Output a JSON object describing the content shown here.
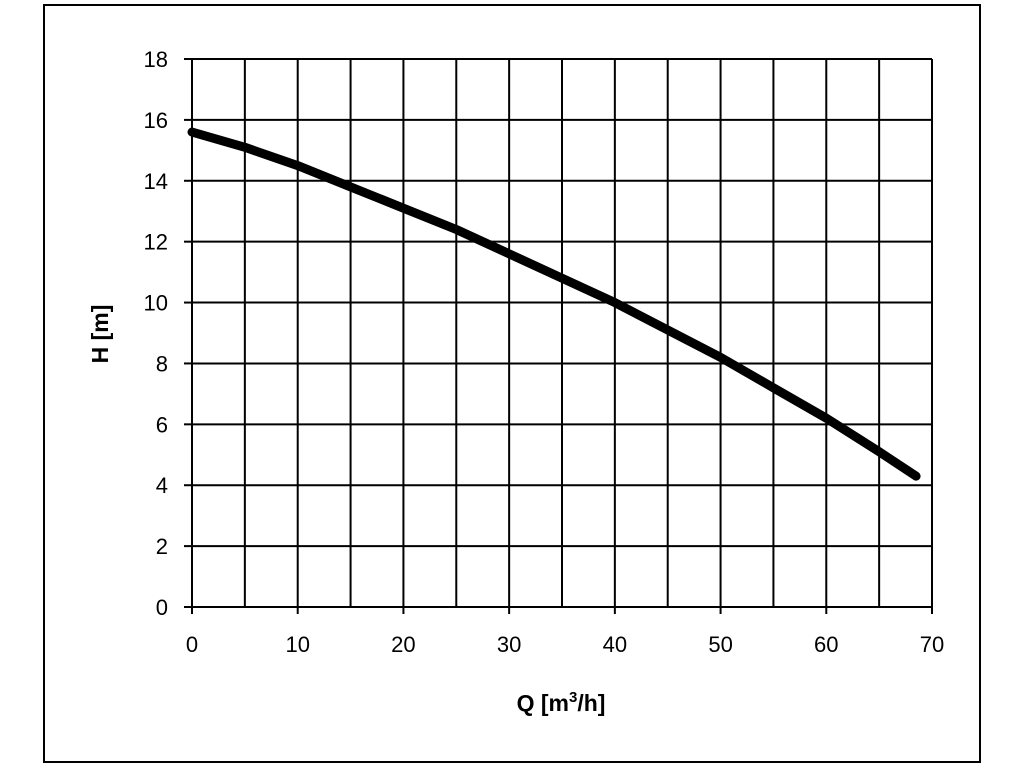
{
  "chart_data": {
    "type": "line",
    "xlabel": "Q [m",
    "xlabel_sup": "3",
    "xlabel_tail": "/h]",
    "ylabel": "H [m]",
    "xlim": [
      0,
      70
    ],
    "ylim": [
      0,
      18
    ],
    "x_ticks": [
      0,
      10,
      20,
      30,
      40,
      50,
      60,
      70
    ],
    "y_ticks": [
      0,
      2,
      4,
      6,
      8,
      10,
      12,
      14,
      16,
      18
    ],
    "x_grid_step": 5,
    "y_grid_step": 2,
    "grid": true,
    "series": [
      {
        "color": "#000000",
        "x": [
          0,
          5,
          10,
          15,
          20,
          25,
          30,
          35,
          40,
          45,
          50,
          55,
          60,
          65,
          68.5
        ],
        "y": [
          15.6,
          15.1,
          14.5,
          13.8,
          13.1,
          12.4,
          11.6,
          10.8,
          10.0,
          9.1,
          8.2,
          7.2,
          6.2,
          5.1,
          4.3
        ]
      }
    ]
  }
}
